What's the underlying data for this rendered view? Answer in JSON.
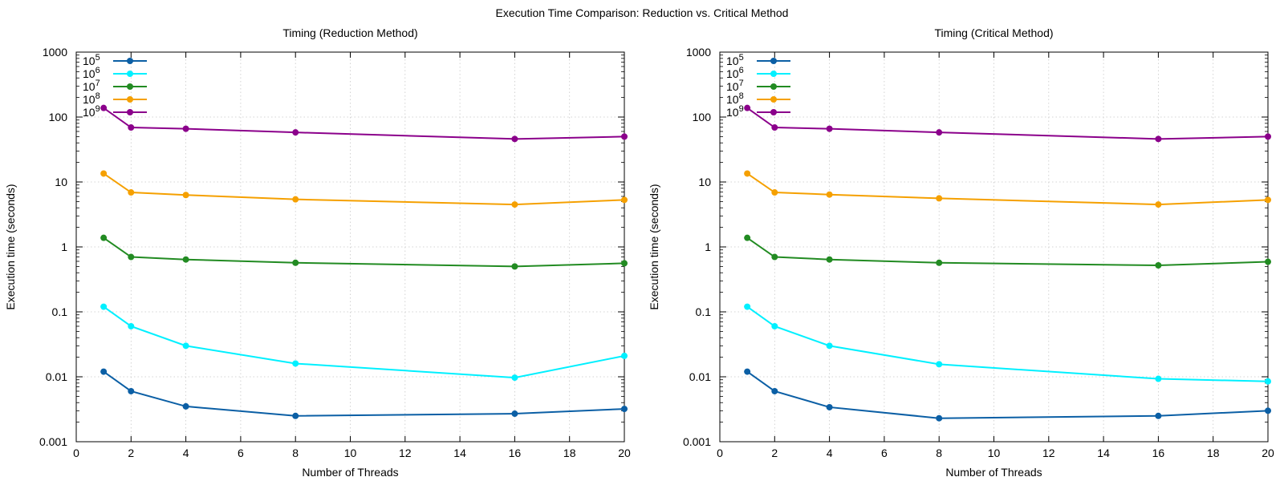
{
  "figure": {
    "title": "Execution Time Comparison: Reduction vs. Critical Method"
  },
  "colors": {
    "grid": "#c8c8c8",
    "axis": "#000000"
  },
  "chart_data": [
    {
      "type": "line",
      "title": "Timing (Reduction Method)",
      "xlabel": "Number of Threads",
      "ylabel": "Execution time (seconds)",
      "xlim": [
        0,
        20
      ],
      "ylim": [
        0.001,
        1000
      ],
      "yscale": "log",
      "grid": true,
      "legend_position": "top-left",
      "xticks": [
        0,
        2,
        4,
        6,
        8,
        10,
        12,
        14,
        16,
        18,
        20
      ],
      "yticks": [
        0.001,
        0.01,
        0.1,
        1,
        10,
        100,
        1000
      ],
      "ytick_labels": [
        "0.001",
        "0.01",
        "0.1",
        "1",
        "10",
        "100",
        "1000"
      ],
      "x": [
        1,
        2,
        4,
        8,
        16,
        20
      ],
      "series": [
        {
          "name_base": "10",
          "name_exp": "5",
          "color": "#0b5fa5",
          "values": [
            0.012,
            0.006,
            0.0035,
            0.0025,
            0.0027,
            0.0032
          ]
        },
        {
          "name_base": "10",
          "name_exp": "6",
          "color": "#00f0ff",
          "values": [
            0.12,
            0.06,
            0.03,
            0.016,
            0.0097,
            0.021
          ]
        },
        {
          "name_base": "10",
          "name_exp": "7",
          "color": "#228b22",
          "values": [
            1.38,
            0.7,
            0.64,
            0.57,
            0.5,
            0.56
          ]
        },
        {
          "name_base": "10",
          "name_exp": "8",
          "color": "#f5a000",
          "values": [
            13.5,
            6.9,
            6.3,
            5.4,
            4.5,
            5.3
          ]
        },
        {
          "name_base": "10",
          "name_exp": "9",
          "color": "#8b008b",
          "values": [
            138,
            69,
            66,
            58,
            46,
            50
          ]
        }
      ]
    },
    {
      "type": "line",
      "title": "Timing (Critical Method)",
      "xlabel": "Number of Threads",
      "ylabel": "Execution time (seconds)",
      "xlim": [
        0,
        20
      ],
      "ylim": [
        0.001,
        1000
      ],
      "yscale": "log",
      "grid": true,
      "legend_position": "top-left",
      "xticks": [
        0,
        2,
        4,
        6,
        8,
        10,
        12,
        14,
        16,
        18,
        20
      ],
      "yticks": [
        0.001,
        0.01,
        0.1,
        1,
        10,
        100,
        1000
      ],
      "ytick_labels": [
        "0.001",
        "0.01",
        "0.1",
        "1",
        "10",
        "100",
        "1000"
      ],
      "x": [
        1,
        2,
        4,
        8,
        16,
        20
      ],
      "series": [
        {
          "name_base": "10",
          "name_exp": "5",
          "color": "#0b5fa5",
          "values": [
            0.012,
            0.006,
            0.0034,
            0.0023,
            0.0025,
            0.003
          ]
        },
        {
          "name_base": "10",
          "name_exp": "6",
          "color": "#00f0ff",
          "values": [
            0.12,
            0.06,
            0.03,
            0.0156,
            0.0093,
            0.0085
          ]
        },
        {
          "name_base": "10",
          "name_exp": "7",
          "color": "#228b22",
          "values": [
            1.38,
            0.7,
            0.64,
            0.57,
            0.52,
            0.59
          ]
        },
        {
          "name_base": "10",
          "name_exp": "8",
          "color": "#f5a000",
          "values": [
            13.5,
            6.9,
            6.4,
            5.6,
            4.5,
            5.3
          ]
        },
        {
          "name_base": "10",
          "name_exp": "9",
          "color": "#8b008b",
          "values": [
            138,
            69,
            66,
            58,
            46,
            50
          ]
        }
      ]
    }
  ]
}
